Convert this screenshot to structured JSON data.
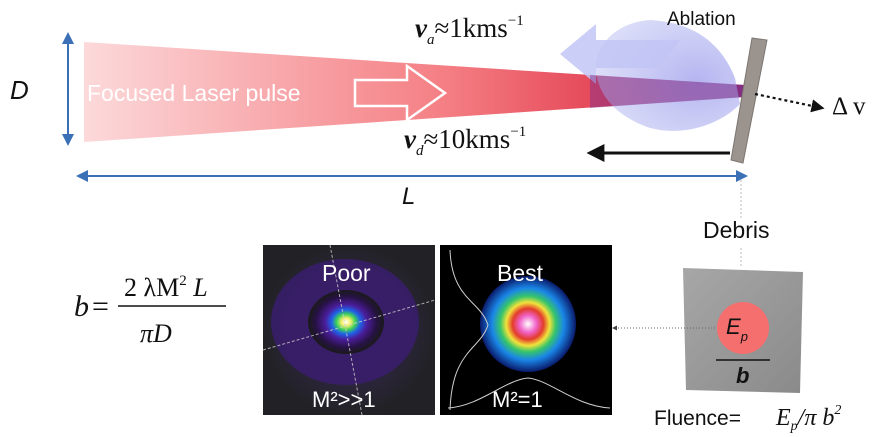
{
  "labels": {
    "ablation": "Ablation",
    "beam": "Focused Laser pulse",
    "D": "D",
    "L": "L",
    "delta_v": "Δ v",
    "debris": "Debris",
    "poor": "Poor",
    "best": "Best",
    "m2_poor": "M²>>1",
    "m2_best": "M²=1",
    "fluence_prefix": "Fluence=",
    "fluence_formula": "E",
    "fluence_sub": "p",
    "fluence_rest": "/π b",
    "fluence_sup": "2"
  },
  "equations": {
    "va": {
      "var": "v",
      "sub": "a",
      "rest": "≈1kms",
      "sup": "−1"
    },
    "vd": {
      "var": "v",
      "sub": "d",
      "rest": "≈10kms",
      "sup": "−1"
    },
    "b": {
      "lhs": "b",
      "eq": "=",
      "numerator": "2 λM",
      "num_sup": "2",
      "num_tail": " L",
      "denominator": "πD"
    }
  },
  "target": {
    "energy": "E",
    "energy_sub": "p",
    "spot": "b"
  },
  "colors": {
    "beam_start": "#fbd3d4",
    "beam_end": "#e83d45",
    "plume": "#b9bff0",
    "arrow_blue": "#3b6fb6",
    "mirror": "#9a938e"
  }
}
